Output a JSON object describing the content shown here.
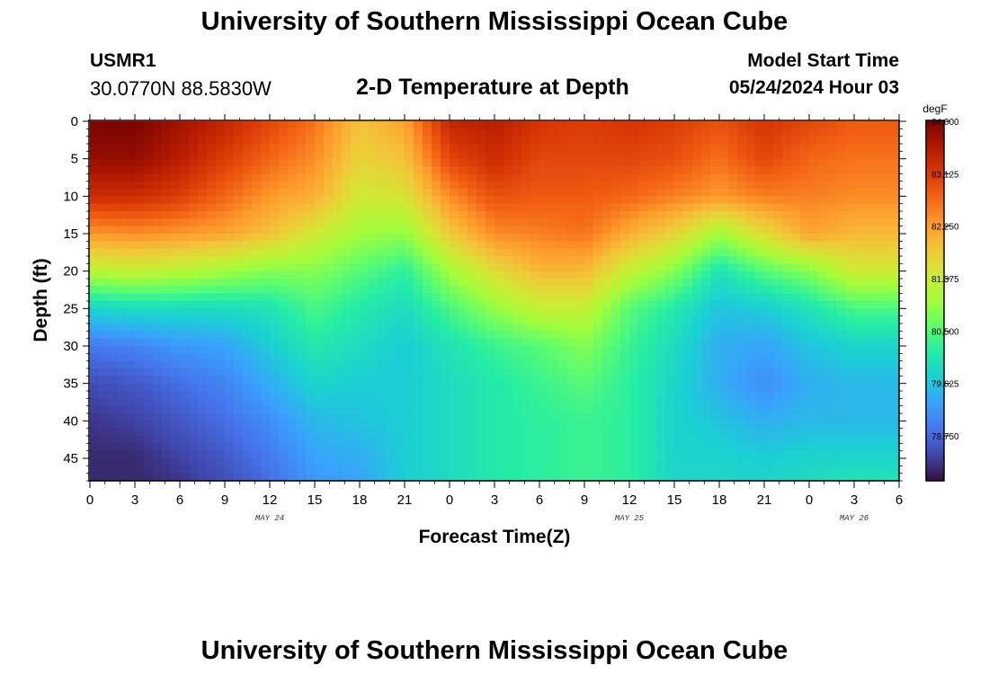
{
  "header": {
    "title": "University of Southern Mississippi Ocean Cube",
    "station": "USMR1",
    "coords": "30.0770N  88.5830W",
    "subtitle": "2-D Temperature at Depth",
    "model_start_label": "Model Start Time",
    "model_start_value": "05/24/2024 Hour 03"
  },
  "footer": {
    "title": "University of Southern Mississippi Ocean Cube"
  },
  "colors": {
    "colormap": [
      "#30123b",
      "#4145ab",
      "#4675ed",
      "#39a2fc",
      "#1bcfd4",
      "#24eca6",
      "#61fc6c",
      "#a4fc3b",
      "#d1e834",
      "#f3c63a",
      "#fe9b2d",
      "#f36315",
      "#d93806",
      "#b11901",
      "#7a0402"
    ]
  },
  "chart_data": {
    "type": "heatmap",
    "title": "2-D Temperature at Depth",
    "xlabel": "Forecast Time(Z)",
    "ylabel": "Depth (ft)",
    "x_hours": [
      0,
      3,
      6,
      9,
      12,
      15,
      18,
      21,
      24,
      27,
      30,
      33,
      36,
      39,
      42,
      45,
      48,
      51
    ],
    "xlim": [
      0,
      54
    ],
    "x_tick_labels": [
      "0",
      "3",
      "6",
      "9",
      "12",
      "15",
      "18",
      "21",
      "0",
      "3",
      "6",
      "9",
      "12",
      "15",
      "18",
      "21",
      "0",
      "3",
      "6"
    ],
    "date_labels": [
      {
        "text": "MAY 24",
        "hour": 12
      },
      {
        "text": "MAY 25",
        "hour": 36
      },
      {
        "text": "MAY 26",
        "hour": 51
      }
    ],
    "ylim": [
      0,
      48
    ],
    "y_ticks": [
      0,
      5,
      10,
      15,
      20,
      25,
      30,
      35,
      40,
      45
    ],
    "colorbar": {
      "unit": "degF",
      "min": 78.0,
      "max": 84.0,
      "tick_labels": [
        "84.000",
        "83.125",
        "82.250",
        "81.375",
        "80.500",
        "79.625",
        "78.750"
      ]
    },
    "depth_profiles_ft": [
      0,
      5,
      10,
      15,
      20,
      25,
      30,
      35,
      40,
      45,
      48
    ],
    "temperature_degF": [
      [
        84.0,
        83.8,
        83.3,
        82.3,
        81.2,
        79.8,
        78.9,
        78.5,
        78.3,
        78.2,
        78.2
      ],
      [
        84.0,
        83.8,
        83.3,
        82.4,
        81.3,
        79.9,
        79.0,
        78.6,
        78.4,
        78.2,
        78.2
      ],
      [
        83.7,
        83.5,
        83.1,
        82.3,
        81.2,
        79.9,
        79.2,
        78.8,
        78.6,
        78.4,
        78.3
      ],
      [
        83.4,
        83.1,
        82.7,
        82.2,
        81.0,
        79.9,
        79.3,
        79.0,
        78.8,
        78.6,
        78.5
      ],
      [
        83.0,
        82.7,
        82.3,
        81.9,
        80.8,
        80.0,
        79.7,
        79.4,
        79.1,
        78.9,
        78.8
      ],
      [
        82.6,
        82.4,
        82.1,
        81.4,
        80.8,
        80.4,
        80.1,
        79.8,
        79.5,
        79.3,
        79.2
      ],
      [
        81.9,
        81.7,
        81.4,
        81.0,
        80.5,
        80.1,
        79.9,
        79.7,
        79.6,
        79.4,
        79.3
      ],
      [
        82.2,
        81.9,
        81.5,
        80.9,
        80.2,
        79.9,
        79.7,
        79.7,
        79.7,
        79.7,
        79.7
      ],
      [
        83.4,
        83.0,
        82.4,
        81.8,
        81.0,
        80.4,
        80.0,
        79.9,
        79.9,
        79.9,
        79.9
      ],
      [
        83.5,
        83.3,
        82.9,
        82.4,
        81.6,
        80.9,
        80.3,
        80.1,
        80.1,
        80.1,
        80.1
      ],
      [
        83.2,
        83.0,
        82.8,
        82.5,
        82.0,
        81.3,
        80.5,
        80.3,
        80.2,
        80.2,
        80.2
      ],
      [
        83.1,
        83.0,
        82.8,
        82.6,
        82.0,
        81.3,
        80.8,
        80.5,
        80.3,
        80.3,
        80.3
      ],
      [
        83.2,
        83.0,
        82.7,
        82.1,
        81.3,
        80.5,
        80.3,
        80.2,
        80.2,
        80.2,
        80.2
      ],
      [
        83.1,
        82.9,
        82.5,
        81.7,
        80.8,
        80.1,
        79.9,
        79.8,
        79.8,
        79.8,
        79.8
      ],
      [
        82.9,
        82.6,
        82.3,
        81.0,
        80.0,
        79.6,
        79.4,
        79.4,
        79.6,
        79.8,
        79.8
      ],
      [
        83.2,
        83.0,
        82.5,
        81.6,
        80.5,
        79.7,
        79.3,
        79.1,
        79.4,
        79.7,
        79.8
      ],
      [
        83.0,
        82.7,
        82.5,
        82.2,
        80.8,
        80.0,
        79.6,
        79.4,
        79.5,
        79.8,
        79.9
      ],
      [
        82.8,
        82.6,
        82.4,
        82.0,
        81.4,
        80.4,
        79.8,
        79.5,
        79.5,
        79.8,
        80.0
      ]
    ]
  }
}
